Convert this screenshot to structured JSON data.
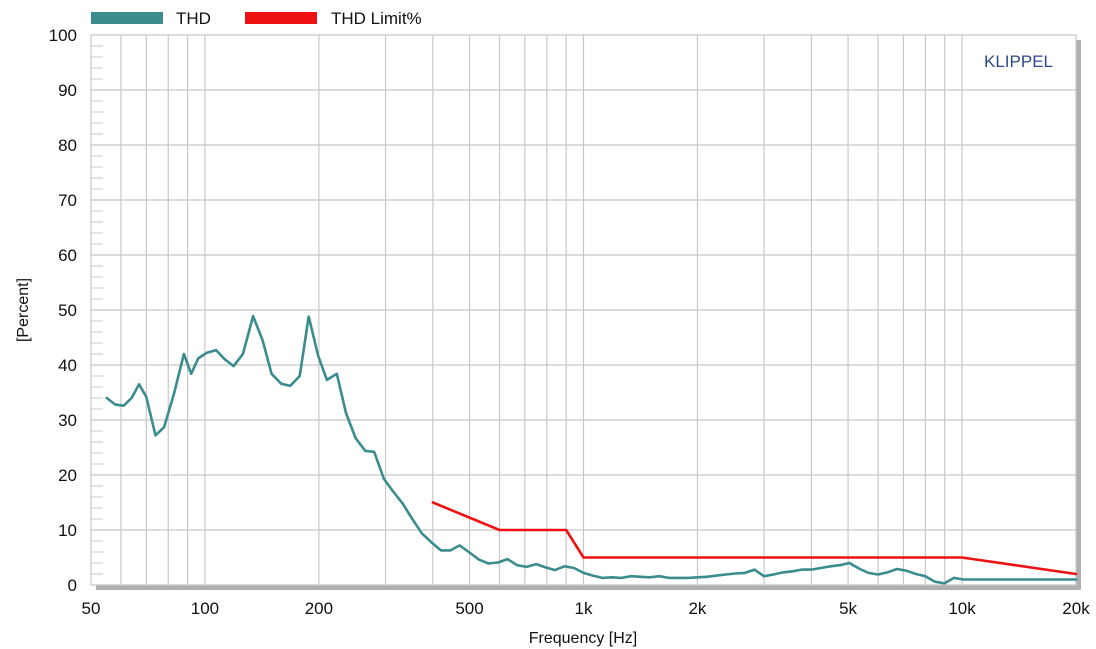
{
  "chart_data": {
    "type": "line",
    "xlabel": "Frequency [Hz]",
    "ylabel": "[Percent]",
    "x_scale": "log",
    "xlim": [
      50,
      20000
    ],
    "ylim": [
      0,
      100
    ],
    "grid": true,
    "legend_position": "top-left",
    "watermark": "KLIPPEL",
    "watermark_color": "#2e4a8c",
    "y_ticks": [
      0,
      10,
      20,
      30,
      40,
      50,
      60,
      70,
      80,
      90,
      100
    ],
    "x_ticks": [
      {
        "value": 50,
        "label": "50"
      },
      {
        "value": 100,
        "label": "100"
      },
      {
        "value": 200,
        "label": "200"
      },
      {
        "value": 500,
        "label": "500"
      },
      {
        "value": 1000,
        "label": "1k"
      },
      {
        "value": 2000,
        "label": "2k"
      },
      {
        "value": 5000,
        "label": "5k"
      },
      {
        "value": 10000,
        "label": "10k"
      },
      {
        "value": 20000,
        "label": "20k"
      }
    ],
    "series": [
      {
        "name": "THD",
        "color": "#3b8c8c",
        "points": [
          [
            55,
            34
          ],
          [
            58,
            32.8
          ],
          [
            61,
            32.6
          ],
          [
            64,
            34
          ],
          [
            67,
            36.5
          ],
          [
            70,
            34.2
          ],
          [
            74,
            27.2
          ],
          [
            78,
            28.7
          ],
          [
            83,
            35
          ],
          [
            88,
            42
          ],
          [
            92,
            38.4
          ],
          [
            96,
            41.2
          ],
          [
            101,
            42.2
          ],
          [
            107,
            42.7
          ],
          [
            113,
            41
          ],
          [
            119,
            39.8
          ],
          [
            126,
            42
          ],
          [
            134,
            48.9
          ],
          [
            142,
            44.5
          ],
          [
            150,
            38.4
          ],
          [
            159,
            36.6
          ],
          [
            168,
            36.2
          ],
          [
            178,
            38
          ],
          [
            188,
            48.8
          ],
          [
            199,
            41.7
          ],
          [
            210,
            37.3
          ],
          [
            223,
            38.4
          ],
          [
            236,
            31.2
          ],
          [
            250,
            26.7
          ],
          [
            265,
            24.4
          ],
          [
            280,
            24.2
          ],
          [
            297,
            19.3
          ],
          [
            314,
            17
          ],
          [
            333,
            14.8
          ],
          [
            353,
            12
          ],
          [
            374,
            9.4
          ],
          [
            396,
            7.8
          ],
          [
            420,
            6.3
          ],
          [
            445,
            6.3
          ],
          [
            471,
            7.2
          ],
          [
            500,
            5.9
          ],
          [
            530,
            4.6
          ],
          [
            561,
            3.9
          ],
          [
            595,
            4.1
          ],
          [
            630,
            4.7
          ],
          [
            668,
            3.6
          ],
          [
            707,
            3.3
          ],
          [
            750,
            3.8
          ],
          [
            794,
            3.2
          ],
          [
            841,
            2.7
          ],
          [
            891,
            3.4
          ],
          [
            944,
            3.1
          ],
          [
            1000,
            2.2
          ],
          [
            1059,
            1.7
          ],
          [
            1122,
            1.3
          ],
          [
            1189,
            1.4
          ],
          [
            1260,
            1.3
          ],
          [
            1335,
            1.6
          ],
          [
            1414,
            1.5
          ],
          [
            1498,
            1.4
          ],
          [
            1587,
            1.6
          ],
          [
            1682,
            1.3
          ],
          [
            1782,
            1.3
          ],
          [
            1888,
            1.3
          ],
          [
            2000,
            1.4
          ],
          [
            2119,
            1.5
          ],
          [
            2245,
            1.7
          ],
          [
            2378,
            1.9
          ],
          [
            2520,
            2.1
          ],
          [
            2670,
            2.2
          ],
          [
            2828,
            2.8
          ],
          [
            2996,
            1.6
          ],
          [
            3175,
            1.9
          ],
          [
            3364,
            2.3
          ],
          [
            3564,
            2.5
          ],
          [
            3775,
            2.8
          ],
          [
            4000,
            2.8
          ],
          [
            4238,
            3.1
          ],
          [
            4490,
            3.4
          ],
          [
            4757,
            3.6
          ],
          [
            5040,
            4
          ],
          [
            5339,
            3
          ],
          [
            5657,
            2.2
          ],
          [
            5993,
            1.9
          ],
          [
            6350,
            2.3
          ],
          [
            6727,
            2.9
          ],
          [
            7127,
            2.6
          ],
          [
            7551,
            2
          ],
          [
            8000,
            1.6
          ],
          [
            8476,
            0.6
          ],
          [
            8980,
            0.3
          ],
          [
            9514,
            1.3
          ],
          [
            10079,
            1
          ],
          [
            11000,
            1
          ],
          [
            14000,
            1
          ],
          [
            20000,
            1
          ]
        ]
      },
      {
        "name": "THD Limit%",
        "color": "#ee1111",
        "points": [
          [
            400,
            15
          ],
          [
            600,
            10
          ],
          [
            900,
            10
          ],
          [
            1000,
            5
          ],
          [
            10000,
            5
          ],
          [
            20000,
            2
          ]
        ]
      }
    ]
  }
}
